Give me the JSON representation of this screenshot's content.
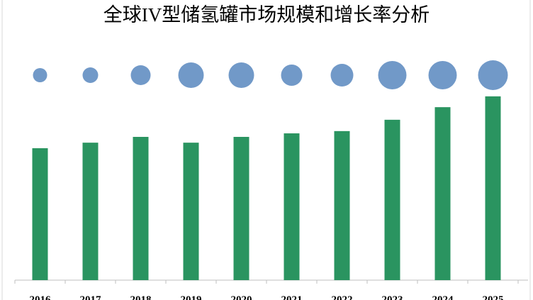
{
  "chart_data": {
    "type": "bar-bubble",
    "title": "全球IV型储氢罐市场规模和增长率分析",
    "categories": [
      "2016",
      "2017",
      "2018",
      "2019",
      "2020",
      "2021",
      "2022",
      "2023",
      "2024",
      "2025"
    ],
    "ylim": [
      0,
      100
    ],
    "series": [
      {
        "type": "bar",
        "color": "#2a9460",
        "values": [
          52.4,
          54.6,
          56.9,
          54.6,
          56.9,
          58.3,
          59.2,
          63.7,
          68.7,
          73.0
        ]
      },
      {
        "type": "bubble",
        "color": "#7199c8",
        "values": [
          10,
          11,
          14,
          18,
          18,
          15,
          16,
          20,
          20,
          21
        ]
      }
    ]
  }
}
